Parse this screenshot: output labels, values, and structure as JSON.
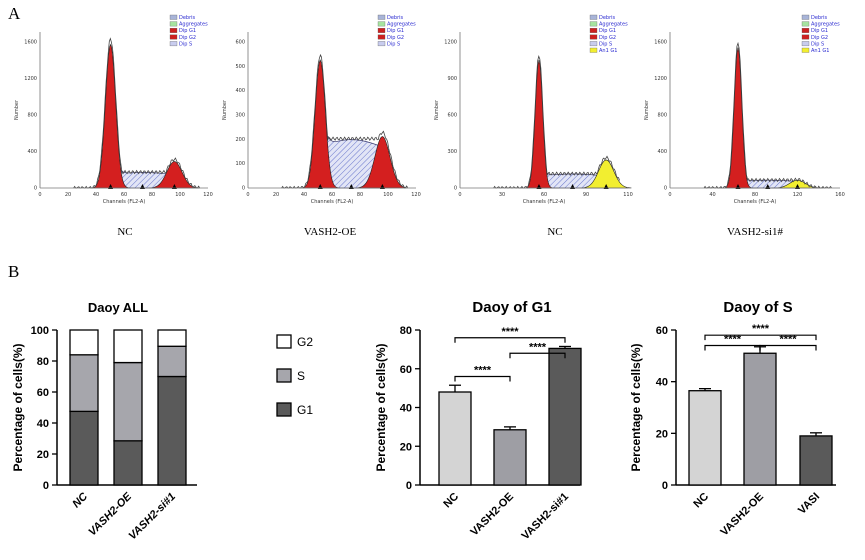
{
  "panel_labels": {
    "a": "A",
    "b": "B"
  },
  "flow_panels": [
    {
      "caption": "NC",
      "legend": [
        "Debris",
        "Aggregates",
        "Dip G1",
        "Dip G2",
        "Dip S"
      ],
      "legend_colors": [
        "#a8b4d8",
        "#a6e3a0",
        "#cc2020",
        "#cc2020",
        "#c8ccee"
      ],
      "yticks": [
        "1600",
        "1200",
        "800",
        "400",
        "0"
      ],
      "xticks": [
        "0",
        "20",
        "40",
        "60",
        "80",
        "100",
        "120"
      ],
      "xlabel": "Channels (FL2-A)",
      "ylabel": "Number",
      "g2_color": "#cc2020"
    },
    {
      "caption": "VASH2-OE",
      "legend": [
        "Debris",
        "Aggregates",
        "Dip G1",
        "Dip G2",
        "Dip S"
      ],
      "legend_colors": [
        "#a8b4d8",
        "#a6e3a0",
        "#cc2020",
        "#cc2020",
        "#c8ccee"
      ],
      "yticks": [
        "600",
        "500",
        "400",
        "300",
        "200",
        "100",
        "0"
      ],
      "xticks": [
        "0",
        "20",
        "40",
        "60",
        "80",
        "100",
        "120"
      ],
      "xlabel": "Channels (FL2-A)",
      "ylabel": "Number",
      "g2_color": "#cc2020"
    },
    {
      "caption": "NC",
      "legend": [
        "Debris",
        "Aggregates",
        "Dip G1",
        "Dip G2",
        "Dip S",
        "An1 G1"
      ],
      "legend_colors": [
        "#a8b4d8",
        "#a6e3a0",
        "#cc2020",
        "#cc2020",
        "#c8ccee",
        "#f2ee30"
      ],
      "yticks": [
        "1200",
        "900",
        "600",
        "300",
        "0"
      ],
      "xticks": [
        "0",
        "30",
        "60",
        "90",
        "110"
      ],
      "xlabel": "Channels (FL2-A)",
      "ylabel": "Number",
      "g2_color": "#f2ee30"
    },
    {
      "caption": "VASH2-si1#",
      "legend": [
        "Debris",
        "Aggregates",
        "Dip G1",
        "Dip G2",
        "Dip S",
        "An1 G1"
      ],
      "legend_colors": [
        "#a8b4d8",
        "#a6e3a0",
        "#cc2020",
        "#cc2020",
        "#c8ccee",
        "#f2ee30"
      ],
      "yticks": [
        "1600",
        "1200",
        "800",
        "400",
        "0"
      ],
      "xticks": [
        "0",
        "40",
        "80",
        "120",
        "160"
      ],
      "xlabel": "Channels (FL2-A)",
      "ylabel": "Number",
      "g2_color": "#f2ee30"
    }
  ],
  "chart_data": [
    {
      "type": "bar",
      "stacked": true,
      "title": "Daoy ALL",
      "ylabel": "Percentage of cells(%)",
      "ylim": [
        0,
        100
      ],
      "yticks": [
        0,
        20,
        40,
        60,
        80,
        100
      ],
      "categories": [
        "NC",
        "VASH2-OE",
        "VASH2-si#1"
      ],
      "series": [
        {
          "name": "G1",
          "values": [
            47.5,
            28.5,
            70
          ],
          "color": "#5a5a5a"
        },
        {
          "name": "S",
          "values": [
            36.5,
            50.5,
            19.5
          ],
          "color": "#a6a6ac"
        },
        {
          "name": "G2",
          "values": [
            16,
            21,
            10.5
          ],
          "color": "#ffffff"
        }
      ],
      "legend_order": [
        "G2",
        "S",
        "G1"
      ],
      "legend_position": "right"
    },
    {
      "type": "bar",
      "title": "Daoy  of  G1",
      "ylabel": "Percentage of cells(%)",
      "ylim": [
        0,
        80
      ],
      "yticks": [
        0,
        20,
        40,
        60,
        80
      ],
      "categories": [
        "NC",
        "VASH2-OE",
        "VASH2-si#1"
      ],
      "values": [
        48,
        28.5,
        70.5
      ],
      "errors": [
        3.5,
        1.5,
        1
      ],
      "colors": [
        "#d4d4d4",
        "#9e9ea4",
        "#5a5a5a"
      ],
      "significance": [
        {
          "from": 0,
          "to": 2,
          "label": "****",
          "y": 76
        },
        {
          "from": 1,
          "to": 2,
          "label": "****",
          "y": 68
        },
        {
          "from": 0,
          "to": 1,
          "label": "****",
          "y": 56
        }
      ]
    },
    {
      "type": "bar",
      "title": "Daoy  of  S",
      "ylabel": "Percentage of cells(%)",
      "ylim": [
        0,
        60
      ],
      "yticks": [
        0,
        20,
        40,
        60
      ],
      "categories": [
        "NC",
        "VASH2-OE",
        "VASI"
      ],
      "values": [
        36.5,
        51,
        19
      ],
      "errors": [
        0.8,
        2.5,
        1.2
      ],
      "colors": [
        "#d4d4d4",
        "#9e9ea4",
        "#5a5a5a"
      ],
      "significance": [
        {
          "from": 0,
          "to": 2,
          "label": "****",
          "y": 58
        },
        {
          "from": 0,
          "to": 1,
          "label": "****",
          "y": 54
        },
        {
          "from": 1,
          "to": 2,
          "label": "****",
          "y": 54
        }
      ]
    }
  ]
}
